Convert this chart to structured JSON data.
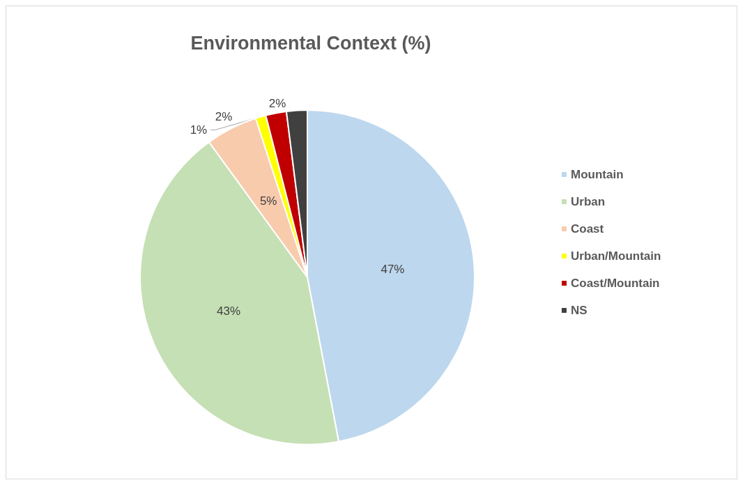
{
  "chart_data": {
    "type": "pie",
    "title": "Environmental Context (%)",
    "categories": [
      "Mountain",
      "Urban",
      "Coast",
      "Urban/Mountain",
      "Coast/Mountain",
      "NS"
    ],
    "values": [
      47,
      43,
      5,
      1,
      2,
      2
    ],
    "colors": [
      "#bdd7ee",
      "#c5e0b4",
      "#f8cbad",
      "#ffff00",
      "#c00000",
      "#404040"
    ],
    "value_labels": [
      "47%",
      "43%",
      "5%",
      "1%",
      "2%",
      "2%"
    ],
    "legend": "right"
  }
}
